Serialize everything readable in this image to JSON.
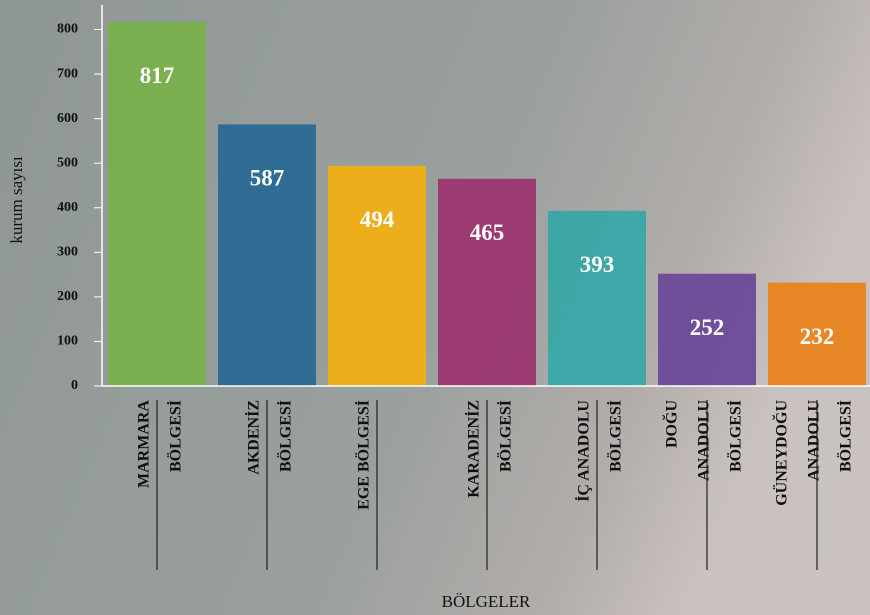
{
  "chart_data": {
    "type": "bar",
    "categories": [
      [
        "MARMARA",
        "BÖLGESİ"
      ],
      [
        "AKDENİZ",
        "BÖLGESİ"
      ],
      [
        "EGE BÖLGESİ"
      ],
      [
        "KARADENİZ",
        "BÖLGESİ"
      ],
      [
        "İÇ ANADOLU",
        "BÖLGESİ"
      ],
      [
        "DOĞU",
        "ANADOLU",
        "BÖLGESİ"
      ],
      [
        "GÜNEYDOĞU",
        "ANADOLU",
        "BÖLGESİ"
      ]
    ],
    "values": [
      817,
      587,
      494,
      465,
      393,
      252,
      232
    ],
    "colors": [
      "#79b04b",
      "#2a6a94",
      "#f0af14",
      "#9b3670",
      "#38a7a6",
      "#6b4a99",
      "#e8831b"
    ],
    "ylabel": "kurum sayısı",
    "xlabel": "BÖLGELER",
    "ylim": [
      0,
      855
    ],
    "yticks": [
      0,
      100,
      200,
      300,
      400,
      500,
      600,
      700,
      800
    ]
  }
}
